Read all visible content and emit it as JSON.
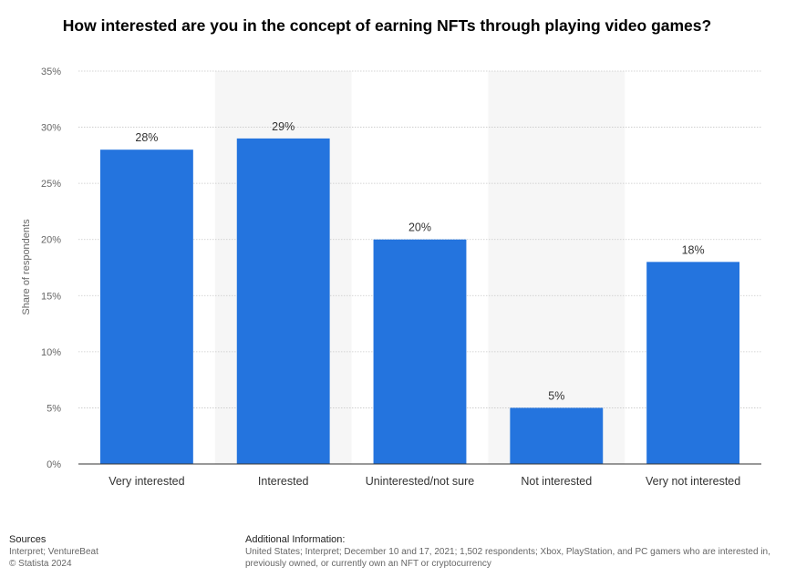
{
  "chart_data": {
    "type": "bar",
    "title": "How interested are you in the concept of earning NFTs through playing video games?",
    "ylabel": "Share of respondents",
    "xlabel": "",
    "categories": [
      "Very interested",
      "Interested",
      "Uninterested/not sure",
      "Not interested",
      "Very not interested"
    ],
    "values": [
      28,
      29,
      20,
      5,
      18
    ],
    "value_labels": [
      "28%",
      "29%",
      "20%",
      "5%",
      "18%"
    ],
    "ylim": [
      0,
      35
    ],
    "yticks": [
      0,
      5,
      10,
      15,
      20,
      25,
      30,
      35
    ],
    "ytick_labels": [
      "0%",
      "5%",
      "10%",
      "15%",
      "20%",
      "25%",
      "30%",
      "35%"
    ],
    "grid": true,
    "bar_color": "#2474de",
    "band_color": "#f6f6f6"
  },
  "footer": {
    "sources_label": "Sources",
    "source_1": "Interpret; VentureBeat",
    "copyright": "© Statista 2024",
    "additional_label": "Additional Information:",
    "additional_line_1": "United States; Interpret; December 10 and 17, 2021; 1,502 respondents; Xbox, PlayStation, and PC gamers who are interested in,",
    "additional_line_2": "previously owned, or currently own an NFT or cryptocurrency"
  }
}
